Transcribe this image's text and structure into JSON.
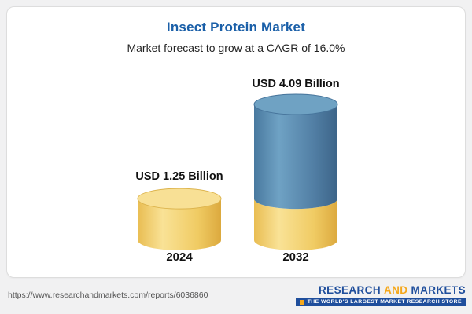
{
  "page": {
    "title": "Insect Protein Market",
    "subtitle": "Market forecast to grow at a CAGR of 16.0%"
  },
  "chart_data": {
    "type": "bar",
    "variant": "3d-cylinder",
    "title": "Insect Protein Market",
    "subtitle": "Market forecast to grow at a CAGR of 16.0%",
    "unit": "USD Billion",
    "cagr_percent": 16.0,
    "categories": [
      "2024",
      "2032"
    ],
    "values": [
      1.25,
      4.09
    ],
    "labels": [
      "USD 1.25 Billion",
      "USD 4.09 Billion"
    ],
    "stacking_note": "2032 cylinder shows the 2024 base value in yellow with the growth portion in blue",
    "xlabel": "",
    "ylabel": "",
    "ylim": [
      0,
      4.5
    ],
    "grid": false,
    "legend": "none",
    "colors": {
      "title_blue": "#1A5FA8",
      "bar_base_yellow": "#F2CE68",
      "bar_growth_blue": "#4E80A6",
      "label_text": "#111111"
    }
  },
  "footer": {
    "url": "https://www.researchandmarkets.com/reports/6036860",
    "logo": {
      "word1": "RESEARCH",
      "word2": "AND",
      "word3": "MARKETS",
      "tagline": "THE WORLD'S LARGEST MARKET RESEARCH STORE",
      "colors": {
        "blue": "#1F4E9C",
        "orange": "#F5A81C"
      }
    }
  }
}
